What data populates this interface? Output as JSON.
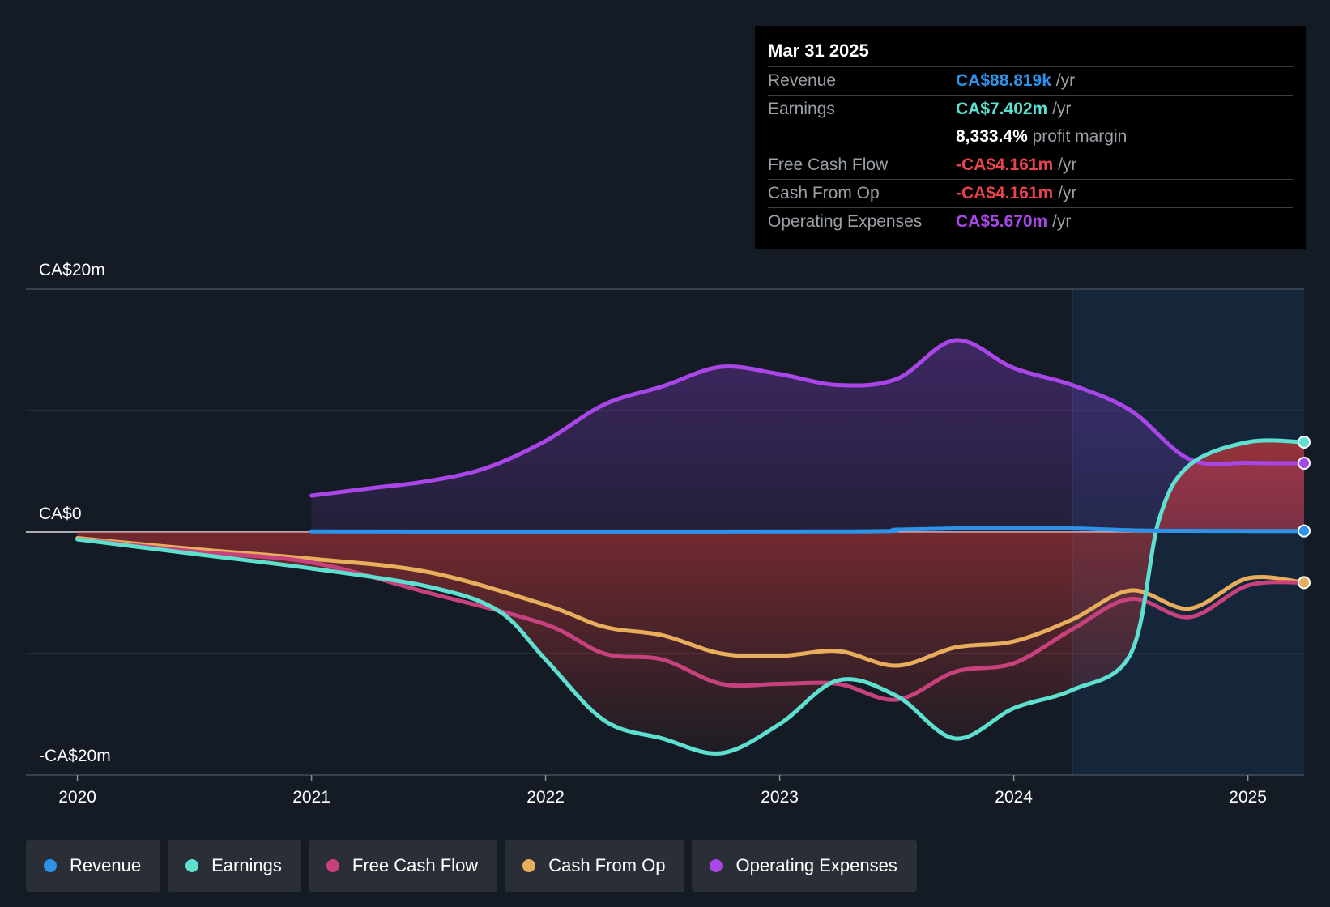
{
  "tooltip": {
    "date": "Mar 31 2025",
    "rows": {
      "revenue": {
        "label": "Revenue",
        "value": "CA$88.819k",
        "unit": "/yr"
      },
      "earnings": {
        "label": "Earnings",
        "value": "CA$7.402m",
        "unit": "/yr"
      },
      "margin": {
        "value": "8,333.4%",
        "unit": "profit margin"
      },
      "fcf": {
        "label": "Free Cash Flow",
        "value": "-CA$4.161m",
        "unit": "/yr"
      },
      "cfo": {
        "label": "Cash From Op",
        "value": "-CA$4.161m",
        "unit": "/yr"
      },
      "opex": {
        "label": "Operating Expenses",
        "value": "CA$5.670m",
        "unit": "/yr"
      }
    }
  },
  "legend": [
    {
      "label": "Revenue",
      "color": "#2d93e8"
    },
    {
      "label": "Earnings",
      "color": "#5ee0d0"
    },
    {
      "label": "Free Cash Flow",
      "color": "#c7427c"
    },
    {
      "label": "Cash From Op",
      "color": "#e9ae5b"
    },
    {
      "label": "Operating Expenses",
      "color": "#a846e8"
    }
  ],
  "colors": {
    "revenue": "#2d93e8",
    "earnings": "#5ee0d0",
    "fcf": "#c7427c",
    "cfo": "#e9ae5b",
    "opex": "#a846e8",
    "negative_fill": "#e33b3b",
    "forecast_bg": "#16263a",
    "grid": "#3a404a"
  },
  "chart_data": {
    "type": "area",
    "title": "",
    "ylabel_top": "CA$20m",
    "ylabel_zero": "CA$0",
    "ylabel_bottom": "-CA$20m",
    "ylim": [
      -20,
      20
    ],
    "xlim": [
      2019.78,
      2025.24
    ],
    "x_ticks": [
      2020,
      2021,
      2022,
      2023,
      2024,
      2025
    ],
    "x_tick_labels": [
      "2020",
      "2021",
      "2022",
      "2023",
      "2024",
      "2025"
    ],
    "forecast_start": 2024.25,
    "series": [
      {
        "key": "opex",
        "name": "Operating Expenses",
        "area": true,
        "x": [
          2021.0,
          2021.25,
          2021.5,
          2021.75,
          2022.0,
          2022.25,
          2022.5,
          2022.75,
          2023.0,
          2023.25,
          2023.5,
          2023.75,
          2024.0,
          2024.25,
          2024.5,
          2024.75,
          2025.0,
          2025.24
        ],
        "y": [
          3.0,
          3.6,
          4.2,
          5.3,
          7.5,
          10.5,
          12.0,
          13.6,
          13.0,
          12.1,
          12.6,
          15.8,
          13.5,
          12.1,
          10.0,
          6.0,
          5.7,
          5.67
        ]
      },
      {
        "key": "earnings",
        "name": "Earnings",
        "x": [
          2020.0,
          2020.5,
          2021.0,
          2021.5,
          2021.8,
          2022.0,
          2022.25,
          2022.5,
          2022.75,
          2023.0,
          2023.25,
          2023.5,
          2023.75,
          2024.0,
          2024.25,
          2024.5,
          2024.62,
          2024.75,
          2025.0,
          2025.24
        ],
        "y": [
          -0.6,
          -1.8,
          -3.0,
          -4.5,
          -6.5,
          -10.5,
          -15.5,
          -17.0,
          -18.2,
          -15.8,
          -12.2,
          -13.5,
          -17.0,
          -14.5,
          -13.0,
          -10.0,
          1.0,
          5.5,
          7.4,
          7.402
        ]
      },
      {
        "key": "fcf",
        "name": "Free Cash Flow",
        "x": [
          2020.0,
          2020.5,
          2021.0,
          2021.5,
          2022.0,
          2022.25,
          2022.5,
          2022.75,
          2023.0,
          2023.25,
          2023.5,
          2023.75,
          2024.0,
          2024.25,
          2024.5,
          2024.75,
          2025.0,
          2025.24
        ],
        "y": [
          -0.6,
          -1.6,
          -2.5,
          -5.0,
          -7.6,
          -10.0,
          -10.5,
          -12.5,
          -12.5,
          -12.5,
          -13.8,
          -11.5,
          -10.8,
          -8.0,
          -5.5,
          -7.0,
          -4.4,
          -4.161
        ]
      },
      {
        "key": "cfo",
        "name": "Cash From Op",
        "x": [
          2020.0,
          2020.5,
          2021.0,
          2021.5,
          2022.0,
          2022.25,
          2022.5,
          2022.75,
          2023.0,
          2023.25,
          2023.5,
          2023.75,
          2024.0,
          2024.25,
          2024.5,
          2024.75,
          2025.0,
          2025.24
        ],
        "y": [
          -0.5,
          -1.4,
          -2.2,
          -3.3,
          -6.0,
          -7.8,
          -8.5,
          -10.0,
          -10.2,
          -9.8,
          -11.0,
          -9.5,
          -9.0,
          -7.2,
          -4.8,
          -6.3,
          -3.8,
          -4.161
        ]
      },
      {
        "key": "revenue",
        "name": "Revenue",
        "x": [
          2021.0,
          2023.25,
          2023.5,
          2023.75,
          2024.0,
          2024.25,
          2024.5,
          2024.75,
          2025.0,
          2025.24
        ],
        "y": [
          0.05,
          0.05,
          0.2,
          0.3,
          0.3,
          0.3,
          0.15,
          0.1,
          0.09,
          0.089
        ]
      }
    ]
  }
}
